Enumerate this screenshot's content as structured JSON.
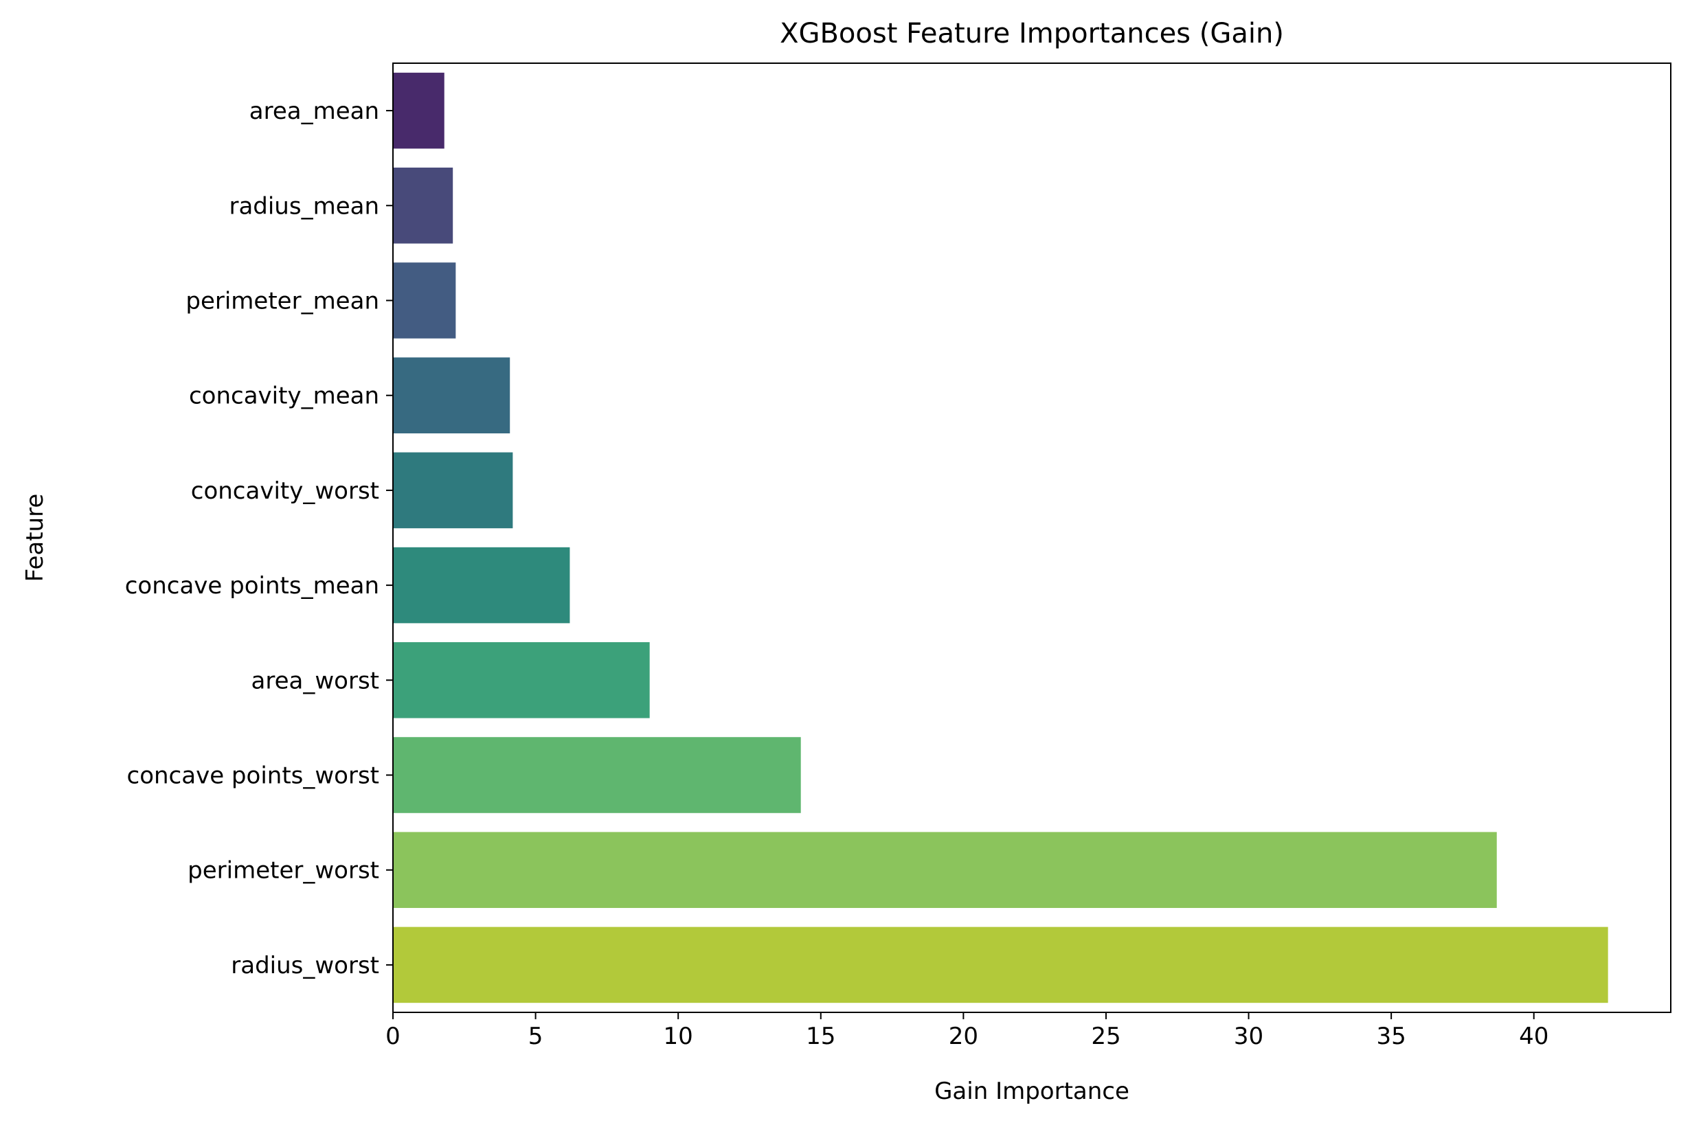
{
  "chart_data": {
    "type": "bar",
    "orientation": "horizontal",
    "title": "XGBoost Feature Importances (Gain)",
    "xlabel": "Gain Importance",
    "ylabel": "Feature",
    "categories": [
      "area_mean",
      "radius_mean",
      "perimeter_mean",
      "concavity_mean",
      "concavity_worst",
      "concave points_mean",
      "area_worst",
      "concave points_worst",
      "perimeter_worst",
      "radius_worst"
    ],
    "values": [
      1.8,
      2.1,
      2.2,
      4.1,
      4.2,
      6.2,
      9.0,
      14.3,
      38.7,
      42.6
    ],
    "colors": [
      "#482a6b",
      "#484a7a",
      "#435c82",
      "#376a81",
      "#2f7a7e",
      "#2e8a7c",
      "#3ca17a",
      "#5fb66f",
      "#8bc45c",
      "#b2c93a"
    ],
    "xlim": [
      0,
      44.8
    ],
    "xticks": [
      "0",
      "5",
      "10",
      "15",
      "20",
      "25",
      "30",
      "35",
      "40"
    ],
    "xtick_values": [
      0,
      5,
      10,
      15,
      20,
      25,
      30,
      35,
      40
    ],
    "grid": false,
    "legend": "none"
  }
}
